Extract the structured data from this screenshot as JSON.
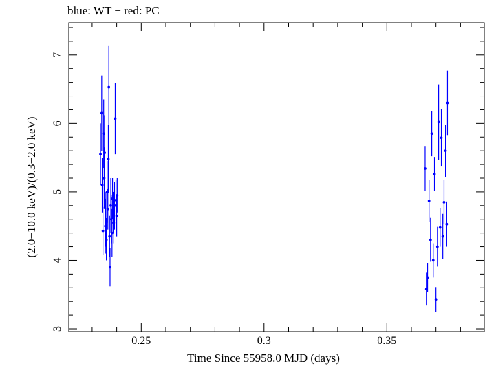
{
  "chart_data": {
    "type": "scatter",
    "title": "blue: WT − red: PC",
    "xlabel": "Time Since 55958.0 MJD (days)",
    "ylabel": "(2.0−10.0 keV)/(0.3−2.0 keV)",
    "xlim": [
      0.2205,
      0.3897
    ],
    "ylim": [
      2.96,
      7.47
    ],
    "xticks": [
      0.25,
      0.3,
      0.35
    ],
    "xtick_labels": [
      "0.25",
      "0.3",
      "0.35"
    ],
    "yticks": [
      3,
      4,
      5,
      6,
      7
    ],
    "ytick_labels": [
      "3",
      "4",
      "5",
      "6",
      "7"
    ],
    "grid": false,
    "series": [
      {
        "color": "#0000ff",
        "x": [
          0.2334,
          0.2339,
          0.2341,
          0.2344,
          0.2347,
          0.2349,
          0.2351,
          0.2354,
          0.2356,
          0.2358,
          0.2361,
          0.2364,
          0.2366,
          0.2368,
          0.2371,
          0.2373,
          0.2376,
          0.2378,
          0.2381,
          0.2383,
          0.2386,
          0.2388,
          0.2391,
          0.2394,
          0.2397,
          0.24,
          0.2402,
          0.3656,
          0.3661,
          0.3666,
          0.3672,
          0.3678,
          0.3683,
          0.3689,
          0.3694,
          0.37,
          0.3706,
          0.3711,
          0.3717,
          0.3722,
          0.3728,
          0.3733,
          0.3739,
          0.3744,
          0.3747
        ],
        "y": [
          5.55,
          6.15,
          5.1,
          4.43,
          5.85,
          5.2,
          5.57,
          4.5,
          4.6,
          4.3,
          5.0,
          4.75,
          5.48,
          6.53,
          4.35,
          3.9,
          4.8,
          4.6,
          4.4,
          4.9,
          4.7,
          4.55,
          4.8,
          6.07,
          4.88,
          4.65,
          4.95,
          5.34,
          3.58,
          3.75,
          4.87,
          4.3,
          5.85,
          4.0,
          5.26,
          3.43,
          4.2,
          6.02,
          4.48,
          5.79,
          4.35,
          4.85,
          5.6,
          4.53,
          6.3
        ],
        "yerr": [
          0.45,
          0.55,
          0.4,
          0.35,
          0.5,
          0.45,
          0.55,
          0.4,
          0.4,
          0.3,
          0.45,
          0.3,
          0.5,
          0.6,
          0.3,
          0.28,
          0.4,
          0.35,
          0.35,
          0.3,
          0.3,
          0.3,
          0.35,
          0.52,
          0.3,
          0.3,
          0.25,
          0.33,
          0.24,
          0.21,
          0.31,
          0.32,
          0.33,
          0.25,
          0.25,
          0.18,
          0.29,
          0.55,
          0.28,
          0.42,
          0.33,
          0.32,
          0.38,
          0.33,
          0.47
        ]
      }
    ]
  }
}
